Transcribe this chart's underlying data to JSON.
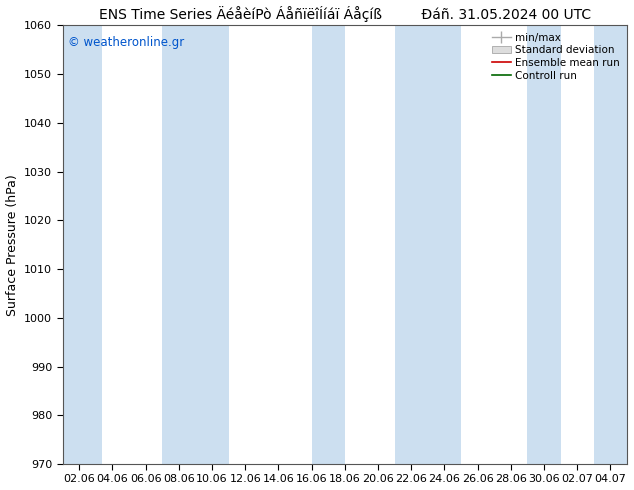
{
  "title": "ENS Time Series ÄéåèíPò ÁåñïëîÍíáï Áåçíß         Ðáñ. 31.05.2024 00 UTC",
  "ylabel": "Surface Pressure (hPa)",
  "ylim": [
    970,
    1060
  ],
  "yticks": [
    970,
    980,
    990,
    1000,
    1010,
    1020,
    1030,
    1040,
    1050,
    1060
  ],
  "xtick_labels": [
    "02.06",
    "04.06",
    "06.06",
    "08.06",
    "10.06",
    "12.06",
    "14.06",
    "16.06",
    "18.06",
    "20.06",
    "22.06",
    "24.06",
    "26.06",
    "28.06",
    "30.06",
    "02.07",
    "04.07"
  ],
  "n_xticks": 17,
  "band_color": "#ccdff0",
  "background_color": "#ffffff",
  "plot_bg_color": "#ffffff",
  "watermark_text": "© weatheronline.gr",
  "watermark_color": "#0055cc",
  "legend_items": [
    "min/max",
    "Standard deviation",
    "Ensemble mean run",
    "Controll run"
  ],
  "legend_line_color": "#aaaaaa",
  "legend_band_color": "#dddddd",
  "legend_red": "#cc0000",
  "legend_green": "#006600",
  "title_fontsize": 10,
  "axis_label_fontsize": 9,
  "tick_fontsize": 8,
  "band_x_positions": [
    0,
    4,
    8,
    14,
    16
  ],
  "band_widths": [
    1.0,
    2.0,
    2.0,
    2.0,
    1.0
  ]
}
